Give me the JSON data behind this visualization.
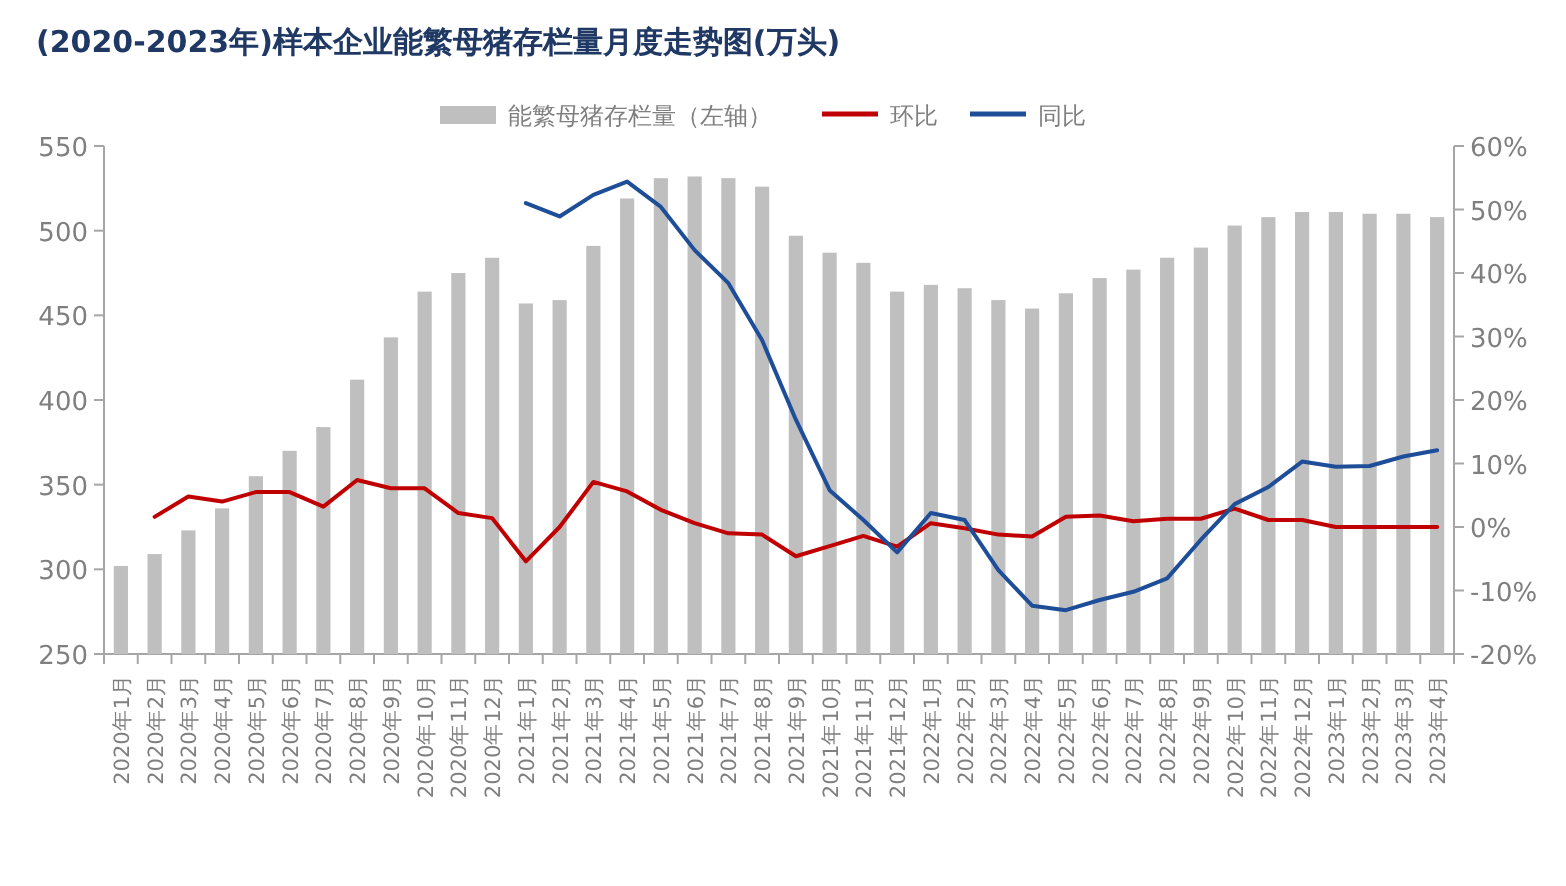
{
  "chart_data": {
    "type": "bar",
    "title": "(2020-2023年)样本企业能繁母猪存栏量月度走势图(万头)",
    "categories": [
      "2020年1月",
      "2020年2月",
      "2020年3月",
      "2020年4月",
      "2020年5月",
      "2020年6月",
      "2020年7月",
      "2020年8月",
      "2020年9月",
      "2020年10月",
      "2020年11月",
      "2020年12月",
      "2021年1月",
      "2021年2月",
      "2021年3月",
      "2021年4月",
      "2021年5月",
      "2021年6月",
      "2021年7月",
      "2021年8月",
      "2021年9月",
      "2021年10月",
      "2021年11月",
      "2021年12月",
      "2022年1月",
      "2022年2月",
      "2022年3月",
      "2022年4月",
      "2022年5月",
      "2022年6月",
      "2022年7月",
      "2022年8月",
      "2022年9月",
      "2022年10月",
      "2022年11月",
      "2022年12月",
      "2023年1月",
      "2023年2月",
      "2023年3月",
      "2023年4月"
    ],
    "series": [
      {
        "name": "能繁母猪存栏量（左轴）",
        "color": "#bfbfbf",
        "values": [
          302,
          309,
          323,
          336,
          355,
          370,
          384,
          412,
          437,
          464,
          475,
          484,
          457,
          459,
          491,
          519,
          531,
          532,
          531,
          526,
          497,
          487,
          481,
          464,
          468,
          466,
          459,
          454,
          463,
          472,
          477,
          484,
          490,
          503,
          508,
          511,
          511,
          510,
          510,
          508
        ]
      },
      {
        "name": "环比",
        "type": "line",
        "axis": "y2",
        "color": "#c00000",
        "values": [
          null,
          1.6,
          4.8,
          4.0,
          5.5,
          5.5,
          3.2,
          7.4,
          6.1,
          6.1,
          2.2,
          1.4,
          -5.4,
          0,
          7.1,
          5.6,
          2.7,
          0.6,
          -1.0,
          -1.2,
          -4.6,
          -3.0,
          -1.4,
          -3.1,
          0.6,
          -0.2,
          -1.2,
          -1.5,
          1.6,
          1.8,
          0.9,
          1.3,
          1.3,
          2.9,
          1.1,
          1.1,
          0,
          0,
          0,
          0
        ]
      },
      {
        "name": "同比",
        "type": "line",
        "axis": "y2",
        "color": "#1f4e99",
        "values": [
          null,
          null,
          null,
          null,
          null,
          null,
          null,
          null,
          null,
          null,
          null,
          null,
          51.0,
          48.9,
          52.3,
          54.4,
          50.4,
          43.6,
          38.4,
          29.4,
          16.9,
          5.8,
          1.1,
          -4.0,
          2.2,
          1.1,
          -6.8,
          -12.4,
          -13.1,
          -11.5,
          -10.2,
          -8.1,
          -2.0,
          3.6,
          6.3,
          10.3,
          9.5,
          9.6,
          11.1,
          12.1
        ]
      }
    ],
    "ylim": [
      250,
      550
    ],
    "yticks": [
      250,
      300,
      350,
      400,
      450,
      500,
      550
    ],
    "y2lim": [
      -20,
      60
    ],
    "y2ticks": [
      {
        "value": -20,
        "label": "-20%"
      },
      {
        "value": -10,
        "label": "-10%"
      },
      {
        "value": 0,
        "label": "0%"
      },
      {
        "value": 10,
        "label": "10%"
      },
      {
        "value": 20,
        "label": "20%"
      },
      {
        "value": 30,
        "label": "30%"
      },
      {
        "value": 40,
        "label": "40%"
      },
      {
        "value": 50,
        "label": "50%"
      },
      {
        "value": 60,
        "label": "60%"
      }
    ],
    "grid": false,
    "legend": "top",
    "marker": "none",
    "line_style": "solid"
  }
}
